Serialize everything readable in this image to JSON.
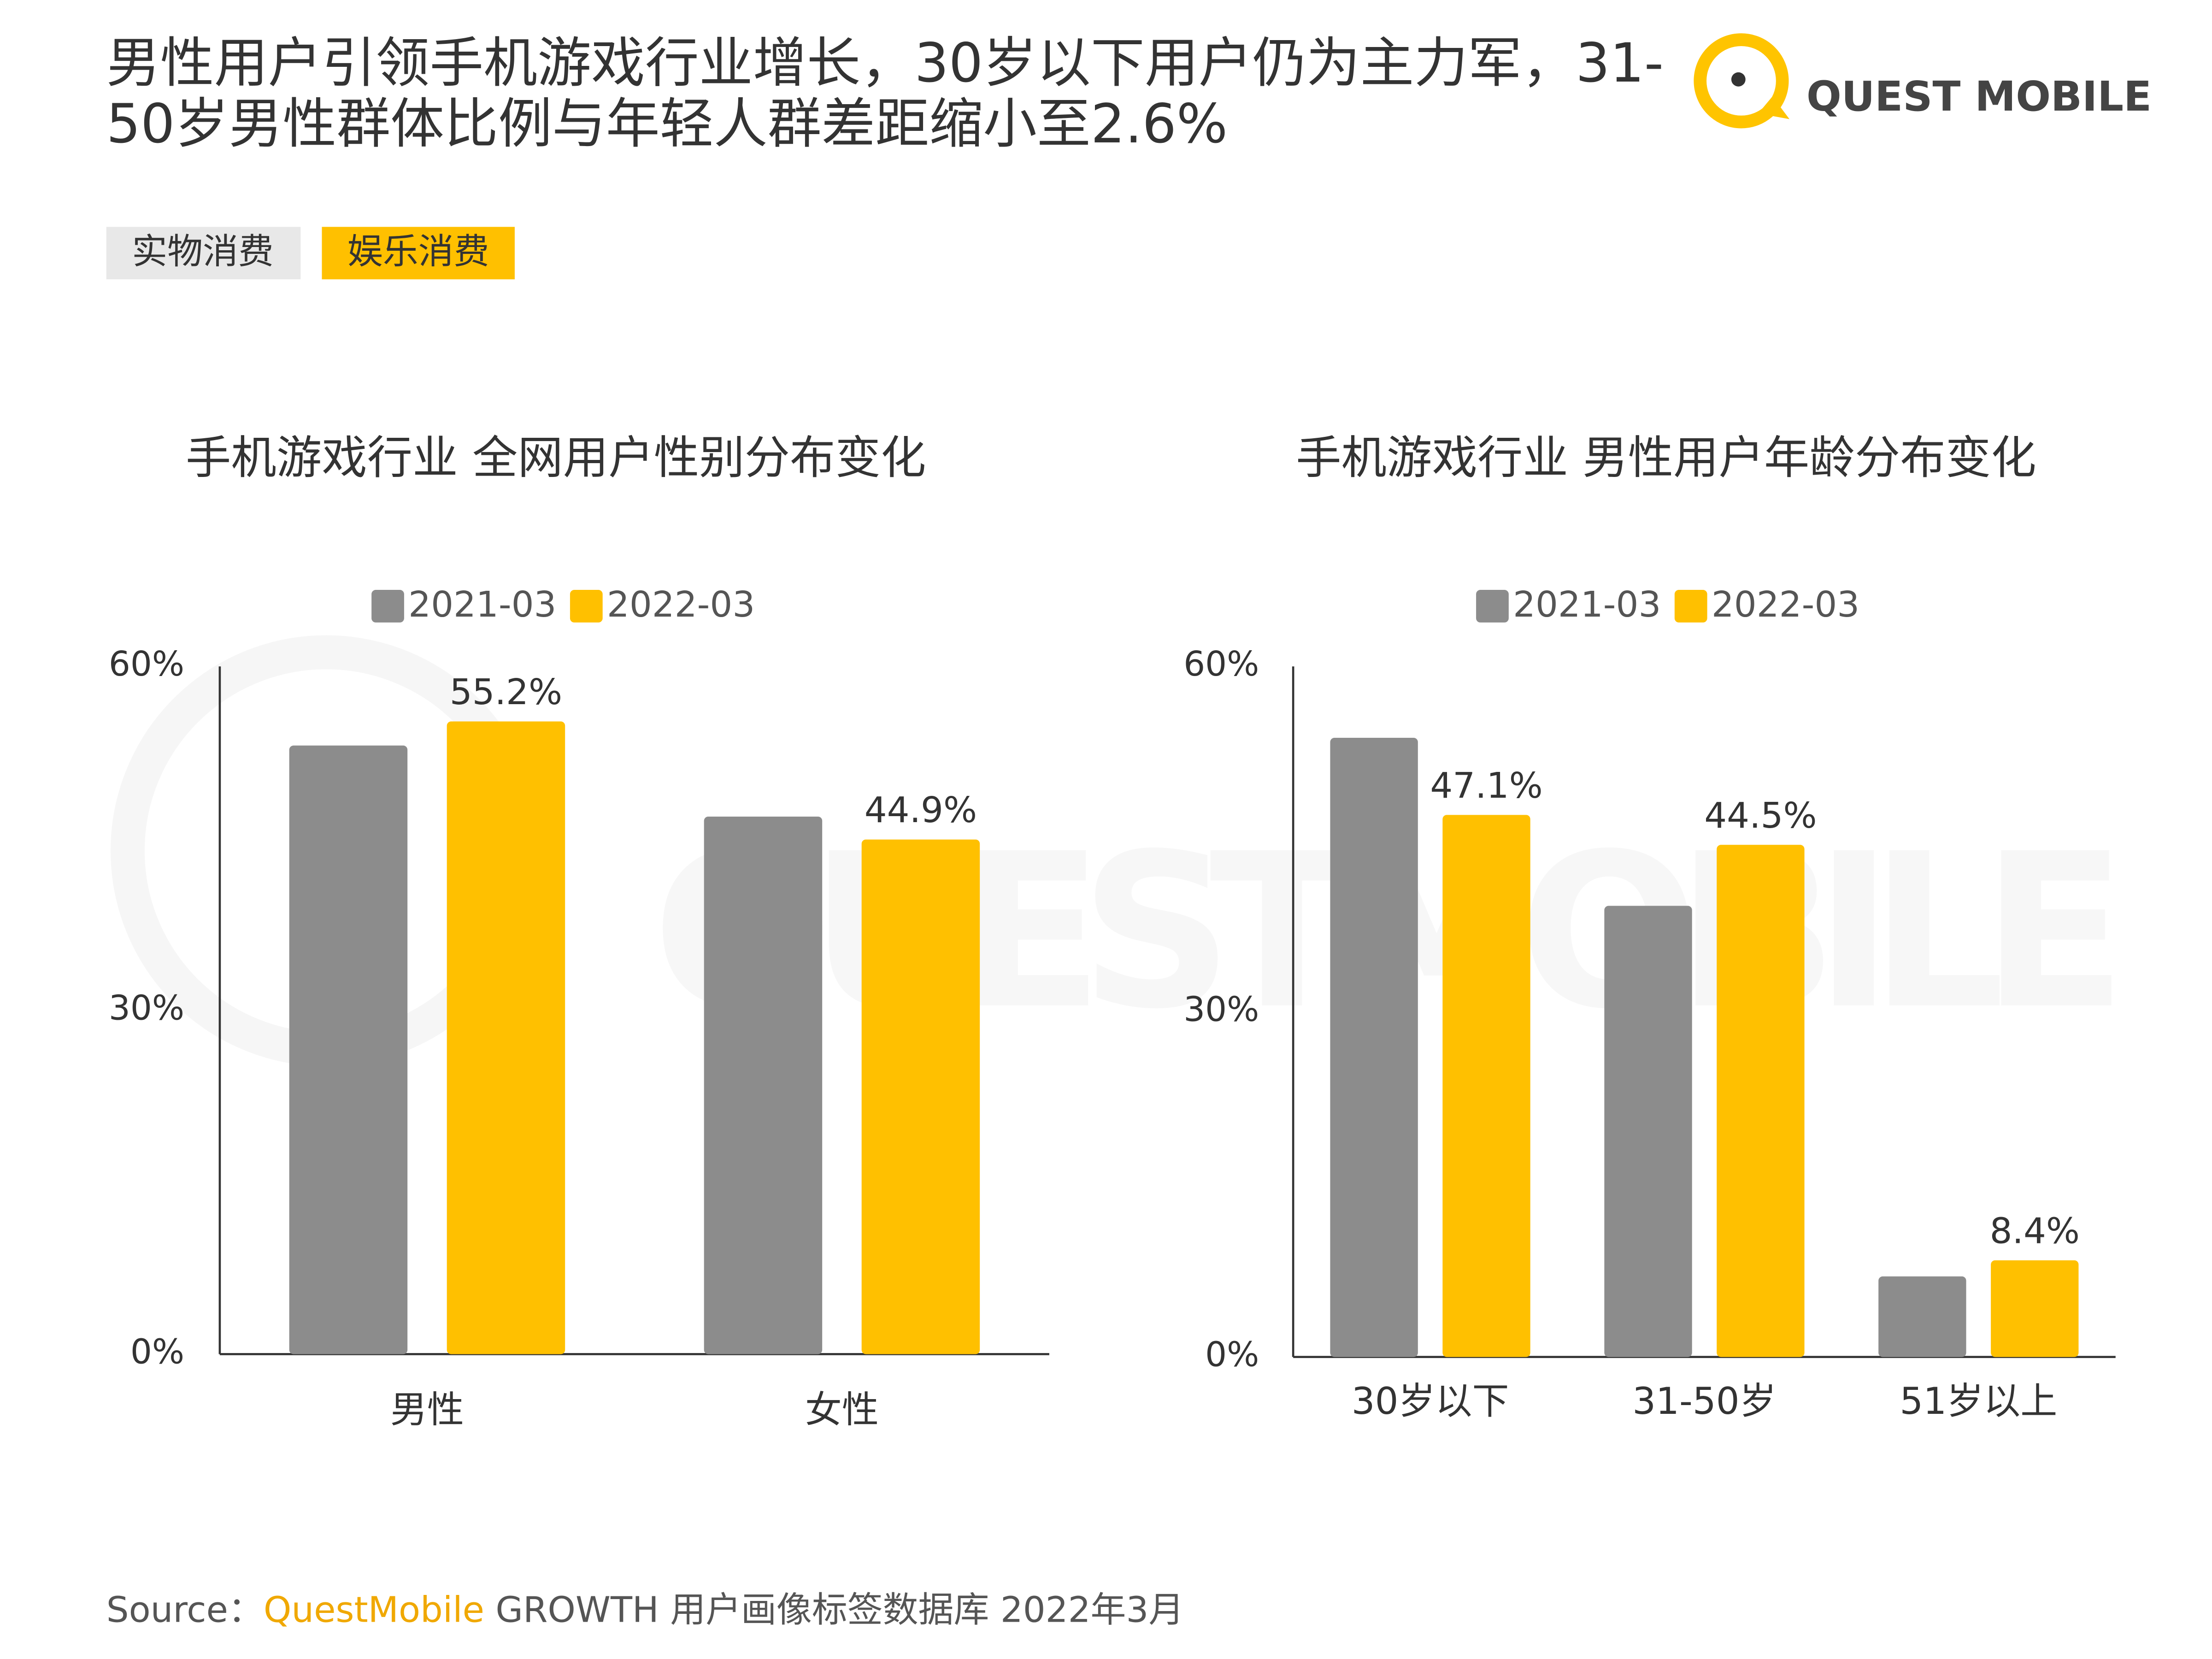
{
  "header": {
    "title": [
      "男性用户引领手机游戏行业增长，30岁以下用户仍为主力军，31-",
      "50岁男性群体比例与年轻人群差距缩小至2.6%"
    ],
    "logo": "QUEST MOBILE"
  },
  "tabs": [
    "实物消费",
    "娱乐消费"
  ],
  "watermark": "QUESTMOBILE",
  "chart_data": [
    {
      "type": "bar",
      "title": "手机游戏行业 全网用户性别分布变化",
      "categories": [
        "男性",
        "女性"
      ],
      "series": [
        {
          "name": "2021-03",
          "color": "#8c8c8c",
          "values": [
            53.1,
            46.9
          ]
        },
        {
          "name": "2022-03",
          "color": "#ffc000",
          "values": [
            55.2,
            44.9
          ],
          "value_labels": [
            "55.2%",
            "44.9%"
          ]
        }
      ],
      "ylim": [
        0,
        60
      ],
      "yticks": [
        {
          "value": 0,
          "label": "0%"
        },
        {
          "value": 30,
          "label": "30%"
        },
        {
          "value": 60,
          "label": "60%"
        }
      ],
      "grid": false,
      "legend": "top"
    },
    {
      "type": "bar",
      "title": "手机游戏行业 男性用户年龄分布变化",
      "categories": [
        "30岁以下",
        "31-50岁",
        "51岁以上"
      ],
      "series": [
        {
          "name": "2021-03",
          "color": "#8c8c8c",
          "values": [
            53.8,
            39.2,
            7.0
          ]
        },
        {
          "name": "2022-03",
          "color": "#ffc000",
          "values": [
            47.1,
            44.5,
            8.4
          ],
          "value_labels": [
            "47.1%",
            "44.5%",
            "8.4%"
          ]
        }
      ],
      "ylim": [
        0,
        60
      ],
      "yticks": [
        {
          "value": 0,
          "label": "0%"
        },
        {
          "value": 30,
          "label": "30%"
        },
        {
          "value": 60,
          "label": "60%"
        }
      ],
      "grid": false,
      "legend": "top"
    }
  ],
  "source": {
    "prefix": "Source：",
    "brand": "QuestMobile",
    "text": " GROWTH 用户画像标签数据库 2022年3月"
  }
}
